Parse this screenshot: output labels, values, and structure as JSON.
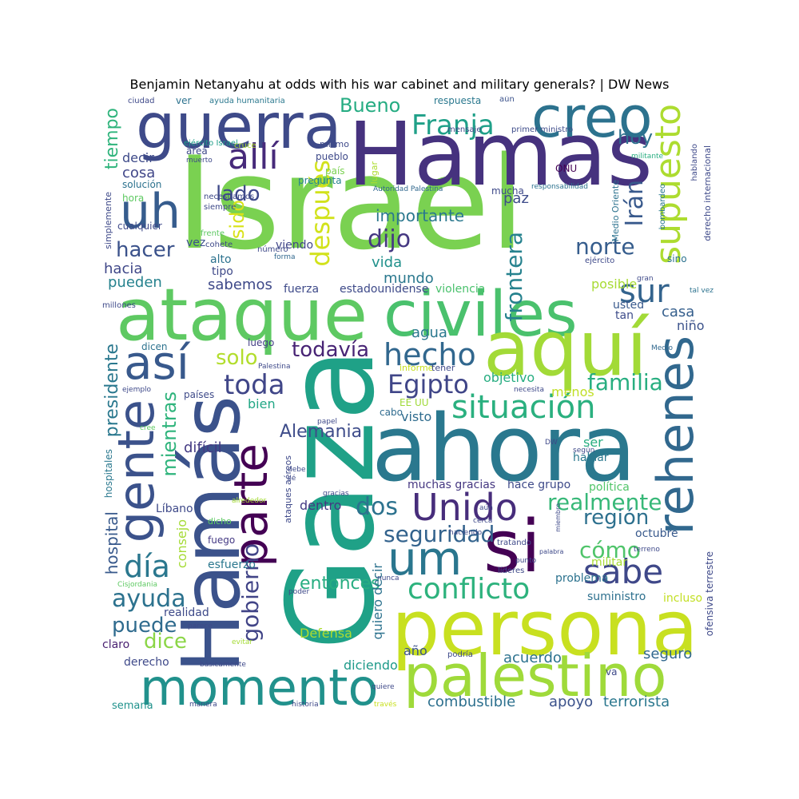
{
  "title": "Benjamin Netanyahu at odds with his war cabinet and military generals? | DW News",
  "words": [
    {
      "text": "Israel",
      "color": "#7ad151"
    },
    {
      "text": "Hamas",
      "color": "#46327e"
    },
    {
      "text": "Gaza",
      "color": "#1fa187"
    },
    {
      "text": "ahora",
      "color": "#2a788e"
    },
    {
      "text": "Hamás",
      "color": "#3b528b"
    },
    {
      "text": "persona",
      "color": "#c8e020"
    },
    {
      "text": "ataque",
      "color": "#5ec962"
    },
    {
      "text": "civiles",
      "color": "#4ac16d"
    },
    {
      "text": "aquí",
      "color": "#a2da37"
    },
    {
      "text": "guerra",
      "color": "#3e4a89"
    },
    {
      "text": "creo",
      "color": "#2c728e"
    },
    {
      "text": "palestino",
      "color": "#9fda3a"
    },
    {
      "text": "momento",
      "color": "#21918c"
    },
    {
      "text": "gente",
      "color": "#3b528b"
    },
    {
      "text": "rehenes",
      "color": "#31688e"
    },
    {
      "text": "parte",
      "color": "#440154"
    },
    {
      "text": "si",
      "color": "#440154"
    },
    {
      "text": "uh",
      "color": "#365c8d"
    },
    {
      "text": "así",
      "color": "#38598c"
    },
    {
      "text": "um",
      "color": "#2a768e"
    },
    {
      "text": "Unido",
      "color": "#472d7b"
    },
    {
      "text": "situación",
      "color": "#2ab07f"
    },
    {
      "text": "sabe",
      "color": "#3f4889"
    },
    {
      "text": "conflicto",
      "color": "#2db27d"
    },
    {
      "text": "allí",
      "color": "#472a7a"
    },
    {
      "text": "supuesto",
      "color": "#addc30"
    },
    {
      "text": "Franja",
      "color": "#1fa088"
    },
    {
      "text": "después",
      "color": "#d2e21b"
    },
    {
      "text": "hecho",
      "color": "#31678e"
    },
    {
      "text": "sur",
      "color": "#33638d"
    },
    {
      "text": "Egipto",
      "color": "#404688"
    },
    {
      "text": "toda",
      "color": "#404688"
    },
    {
      "text": "día",
      "color": "#2a778e"
    },
    {
      "text": "gobierno",
      "color": "#414487"
    },
    {
      "text": "ayuda",
      "color": "#2c728e"
    },
    {
      "text": "familia",
      "color": "#28ae80"
    },
    {
      "text": "seguridad",
      "color": "#33638d"
    },
    {
      "text": "realmente",
      "color": "#37b878"
    },
    {
      "text": "dos",
      "color": "#2c728e"
    },
    {
      "text": "Irán",
      "color": "#38598c"
    },
    {
      "text": "dijo",
      "color": "#453882"
    },
    {
      "text": "frontera",
      "color": "#26828e"
    },
    {
      "text": "norte",
      "color": "#365d8d"
    },
    {
      "text": "todavía",
      "color": "#482475"
    },
    {
      "text": "hacer",
      "color": "#3b528b"
    },
    {
      "text": "lado",
      "color": "#3e4989"
    },
    {
      "text": "región",
      "color": "#2d708e"
    },
    {
      "text": "cómo",
      "color": "#4fc46a"
    },
    {
      "text": "puede",
      "color": "#2f6b8e"
    },
    {
      "text": "dice",
      "color": "#8bd646"
    },
    {
      "text": "Alemania",
      "color": "#3e4c8a"
    },
    {
      "text": "entonces",
      "color": "#27ad81"
    },
    {
      "text": "hoy",
      "color": "#2d708e"
    },
    {
      "text": "Bueno",
      "color": "#25ac82"
    },
    {
      "text": "solo",
      "color": "#b2dd2d"
    },
    {
      "text": "mientras",
      "color": "#2fb47c"
    },
    {
      "text": "presidente",
      "color": "#2a788e"
    },
    {
      "text": "hospital",
      "color": "#38598c"
    },
    {
      "text": "tiempo",
      "color": "#2fb47c"
    },
    {
      "text": "sido",
      "color": "#d8e219"
    },
    {
      "text": "importante",
      "color": "#2a788e"
    },
    {
      "text": "combustible",
      "color": "#2d708e"
    },
    {
      "text": "terrorista",
      "color": "#2a778e"
    },
    {
      "text": "acuerdo",
      "color": "#2c728e"
    },
    {
      "text": "apoyo",
      "color": "#3b528b"
    },
    {
      "text": "seguro",
      "color": "#31688e"
    },
    {
      "text": "difícil",
      "color": "#443a83"
    },
    {
      "text": "sabemos",
      "color": "#3e4989"
    },
    {
      "text": "mundo",
      "color": "#2a788e"
    },
    {
      "text": "vida",
      "color": "#21918c"
    },
    {
      "text": "hacia",
      "color": "#3f4788"
    },
    {
      "text": "pueden",
      "color": "#26828e"
    },
    {
      "text": "casa",
      "color": "#355f8d"
    },
    {
      "text": "agua",
      "color": "#2a788e"
    },
    {
      "text": "objetivo",
      "color": "#27ad81"
    },
    {
      "text": "menos",
      "color": "#c0df25"
    },
    {
      "text": "posible",
      "color": "#a8db34"
    },
    {
      "text": "visto",
      "color": "#2f6c8e"
    },
    {
      "text": "bien",
      "color": "#22a785"
    },
    {
      "text": "quiero decir",
      "color": "#2c728e"
    },
    {
      "text": "consejo",
      "color": "#a5db36"
    },
    {
      "text": "Defensa",
      "color": "#addc30"
    },
    {
      "text": "año",
      "color": "#3b528b"
    },
    {
      "text": "diciendo",
      "color": "#1f9a8a"
    },
    {
      "text": "dentro",
      "color": "#443983"
    },
    {
      "text": "muchas gracias",
      "color": "#453781"
    },
    {
      "text": "hace grupo",
      "color": "#3e4a89"
    },
    {
      "text": "política",
      "color": "#52c569"
    },
    {
      "text": "militar",
      "color": "#a8db34"
    },
    {
      "text": "problema",
      "color": "#2c728e"
    },
    {
      "text": "suministro",
      "color": "#2d708e"
    },
    {
      "text": "incluso",
      "color": "#c2df23"
    },
    {
      "text": "octubre",
      "color": "#38598c"
    },
    {
      "text": "ser",
      "color": "#28ae80"
    },
    {
      "text": "hablar",
      "color": "#2a788e"
    },
    {
      "text": "niño",
      "color": "#3b528b"
    },
    {
      "text": "usted",
      "color": "#38598c"
    },
    {
      "text": "tan",
      "color": "#3e4c8a"
    },
    {
      "text": "cosa",
      "color": "#404688"
    },
    {
      "text": "decir",
      "color": "#3e4a89"
    },
    {
      "text": "Líbano",
      "color": "#3e4989"
    },
    {
      "text": "realidad",
      "color": "#3e4a89"
    },
    {
      "text": "claro",
      "color": "#481f70"
    },
    {
      "text": "derecho",
      "color": "#3e4989"
    },
    {
      "text": "semana",
      "color": "#20928c"
    },
    {
      "text": "esfuerzo",
      "color": "#2a778e"
    },
    {
      "text": "fuerza",
      "color": "#3e4a89"
    },
    {
      "text": "estadounidense",
      "color": "#3e4a89"
    },
    {
      "text": "violencia",
      "color": "#4ac16d"
    },
    {
      "text": "fuego",
      "color": "#443983"
    },
    {
      "text": "dicho",
      "color": "#5ec962"
    },
    {
      "text": "alto",
      "color": "#2c728e"
    },
    {
      "text": "tipo",
      "color": "#3e4989"
    },
    {
      "text": "vez",
      "color": "#3b528b"
    },
    {
      "text": "viendo",
      "color": "#404688"
    },
    {
      "text": "paz",
      "color": "#3e4c8a"
    },
    {
      "text": "mucha",
      "color": "#3e4989"
    },
    {
      "text": "luego",
      "color": "#433e85"
    },
    {
      "text": "dicen",
      "color": "#2c728e"
    },
    {
      "text": "países",
      "color": "#3e4a89"
    },
    {
      "text": "cabo",
      "color": "#2f6b8e"
    },
    {
      "text": "informe",
      "color": "#c8e020"
    },
    {
      "text": "tener",
      "color": "#3e4989"
    },
    {
      "text": "EE UU",
      "color": "#a0da39"
    },
    {
      "text": "solución",
      "color": "#2c728e"
    },
    {
      "text": "hora",
      "color": "#5ec962"
    },
    {
      "text": "ONU",
      "color": "#440154"
    },
    {
      "text": "mismo",
      "color": "#3e4989"
    },
    {
      "text": "pueblo",
      "color": "#3e4989"
    },
    {
      "text": "país",
      "color": "#7ad151"
    },
    {
      "text": "pregunta",
      "color": "#26828e"
    },
    {
      "text": "lugar",
      "color": "#addc30"
    },
    {
      "text": "respuesta",
      "color": "#2a788e"
    },
    {
      "text": "ciudad",
      "color": "#3e4989"
    },
    {
      "text": "ver",
      "color": "#2c728e"
    },
    {
      "text": "ayuda humanitaria",
      "color": "#2a788e"
    },
    {
      "text": "aún",
      "color": "#3b528b"
    },
    {
      "text": "mensaje",
      "color": "#3e4989"
    },
    {
      "text": "primer ministro",
      "color": "#3e4c8a"
    },
    {
      "text": "ejército Israel",
      "color": "#1f9e89"
    },
    {
      "text": "muerto",
      "color": "#3e4989"
    },
    {
      "text": "área",
      "color": "#3e4989"
    },
    {
      "text": "cruce",
      "color": "#addc30"
    },
    {
      "text": "Autoridad Palestina",
      "color": "#31688e"
    },
    {
      "text": "responsabilidad",
      "color": "#2c728e"
    },
    {
      "text": "militante",
      "color": "#28ae80"
    },
    {
      "text": "hablando",
      "color": "#3e4989"
    },
    {
      "text": "Medio Oriente",
      "color": "#2c728e"
    },
    {
      "text": "derecho internacional",
      "color": "#3e4989"
    },
    {
      "text": "bombardeo",
      "color": "#2a788e"
    },
    {
      "text": "necesitamos",
      "color": "#3e4989"
    },
    {
      "text": "siempre",
      "color": "#3e4989"
    },
    {
      "text": "frente",
      "color": "#5ec962"
    },
    {
      "text": "cohete",
      "color": "#3e4989"
    },
    {
      "text": "número",
      "color": "#3e4989"
    },
    {
      "text": "forma",
      "color": "#31688e"
    },
    {
      "text": "ejército",
      "color": "#3e4989"
    },
    {
      "text": "sino",
      "color": "#2c728e"
    },
    {
      "text": "gran",
      "color": "#3e4989"
    },
    {
      "text": "tal vez",
      "color": "#2c728e"
    },
    {
      "text": "cualquier",
      "color": "#3e4989"
    },
    {
      "text": "simplemente",
      "color": "#3e4989"
    },
    {
      "text": "millones",
      "color": "#3e4989"
    },
    {
      "text": "hospitales",
      "color": "#2a788e"
    },
    {
      "text": "ejemplo",
      "color": "#3e4989"
    },
    {
      "text": "cree",
      "color": "#5ec962"
    },
    {
      "text": "papel",
      "color": "#3e4989"
    },
    {
      "text": "Palestina",
      "color": "#3e4989"
    },
    {
      "text": "necesita",
      "color": "#3e4989"
    },
    {
      "text": "Medio",
      "color": "#31688e"
    },
    {
      "text": "DW",
      "color": "#3e4989"
    },
    {
      "text": "según",
      "color": "#3e4989"
    },
    {
      "text": "debe",
      "color": "#3e4989"
    },
    {
      "text": "sé",
      "color": "#3e4989"
    },
    {
      "text": "ataques aéreos",
      "color": "#3e4989"
    },
    {
      "text": "gracias",
      "color": "#3e4989"
    },
    {
      "text": "alrededor",
      "color": "#a5db36"
    },
    {
      "text": "miembro",
      "color": "#3e4989"
    },
    {
      "text": "terreno",
      "color": "#3e4989"
    },
    {
      "text": "palabra",
      "color": "#3e4989"
    },
    {
      "text": "líderes",
      "color": "#3e4989"
    },
    {
      "text": "nunca",
      "color": "#3e4989"
    },
    {
      "text": "punto",
      "color": "#3e4989"
    },
    {
      "text": "tratando",
      "color": "#3e4989"
    },
    {
      "text": "cerca",
      "color": "#3e4989"
    },
    {
      "text": "haciendo",
      "color": "#3e4989"
    },
    {
      "text": "aún",
      "color": "#3e4989"
    },
    {
      "text": "poder",
      "color": "#3e4989"
    },
    {
      "text": "Cisjordania",
      "color": "#5ec962"
    },
    {
      "text": "parece",
      "color": "#3e4989"
    },
    {
      "text": "evitar",
      "color": "#a5db36"
    },
    {
      "text": "básicamente",
      "color": "#3e4989"
    },
    {
      "text": "manera",
      "color": "#3e4989"
    },
    {
      "text": "historia",
      "color": "#3e4989"
    },
    {
      "text": "quiere",
      "color": "#3e4989"
    },
    {
      "text": "través",
      "color": "#c8e020"
    },
    {
      "text": "podría",
      "color": "#3e4989"
    },
    {
      "text": "va",
      "color": "#3e4989"
    },
    {
      "text": "ofensiva terrestre",
      "color": "#3e4989"
    }
  ]
}
